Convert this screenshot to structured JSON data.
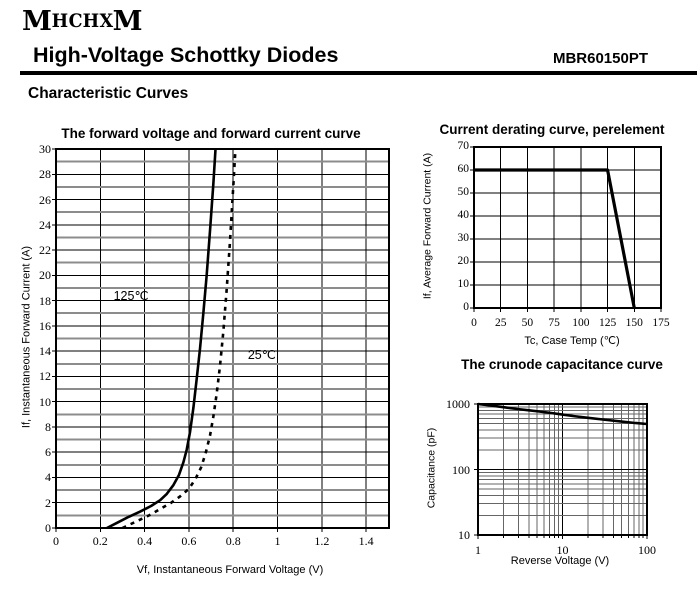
{
  "header": {
    "logo_letters": [
      "M",
      "H",
      "C",
      "H",
      "X",
      "M"
    ],
    "title": "High-Voltage Schottky Diodes",
    "part_number": "MBR60150PT",
    "section_title": "Characteristic Curves"
  },
  "chart_data": [
    {
      "type": "line",
      "title": "The forward voltage and forward current curve",
      "xlabel": "Vf, Instantaneous Forward Voltage (V)",
      "ylabel": "If, Instantaneous Forward Current (A)",
      "x_scale": "linear",
      "y_scale": "linear",
      "xlim": [
        0,
        1.503
      ],
      "ylim": [
        0,
        30
      ],
      "x_ticks": [
        0,
        0.2,
        0.4,
        0.6,
        0.8,
        1.0,
        1.2,
        1.4
      ],
      "x_tick_labels": [
        "0",
        "0.2",
        "0.4",
        "0.6",
        "0.8",
        "1",
        "1.2",
        "1.4"
      ],
      "y_ticks": [
        0,
        2,
        4,
        6,
        8,
        10,
        12,
        14,
        16,
        18,
        20,
        22,
        24,
        26,
        28,
        30
      ],
      "y_tick_labels": [
        "0",
        "2",
        "4",
        "6",
        "8",
        "10",
        "12",
        "14",
        "16",
        "18",
        "20",
        "22",
        "24",
        "26",
        "28",
        "30"
      ],
      "grid_x_step": 0.2,
      "grid_y_step": 1,
      "annotations": [
        {
          "text": "125℃",
          "x": 0.26,
          "y": 19.0
        },
        {
          "text": "25℃",
          "x": 0.866,
          "y": 14.35
        }
      ],
      "series": [
        {
          "name": "125℃",
          "style": "solid",
          "points": [
            [
              0.23,
              0
            ],
            [
              0.28,
              0.45
            ],
            [
              0.33,
              0.9
            ],
            [
              0.38,
              1.3
            ],
            [
              0.43,
              1.75
            ],
            [
              0.47,
              2.2
            ],
            [
              0.5,
              2.7
            ],
            [
              0.53,
              3.4
            ],
            [
              0.555,
              4.2
            ],
            [
              0.575,
              5.2
            ],
            [
              0.59,
              6.2
            ],
            [
              0.605,
              7.6
            ],
            [
              0.62,
              9.5
            ],
            [
              0.635,
              11.8
            ],
            [
              0.65,
              14.2
            ],
            [
              0.665,
              17.0
            ],
            [
              0.68,
              20.0
            ],
            [
              0.695,
              23.5
            ],
            [
              0.71,
              27.2
            ],
            [
              0.72,
              30
            ]
          ]
        },
        {
          "name": "25℃",
          "style": "dashed",
          "points": [
            [
              0.3,
              0
            ],
            [
              0.36,
              0.5
            ],
            [
              0.42,
              1.0
            ],
            [
              0.47,
              1.5
            ],
            [
              0.52,
              2.0
            ],
            [
              0.56,
              2.5
            ],
            [
              0.6,
              3.1
            ],
            [
              0.63,
              3.9
            ],
            [
              0.655,
              4.8
            ],
            [
              0.675,
              5.9
            ],
            [
              0.695,
              7.3
            ],
            [
              0.71,
              8.8
            ],
            [
              0.725,
              10.6
            ],
            [
              0.74,
              12.8
            ],
            [
              0.755,
              15.5
            ],
            [
              0.77,
              18.8
            ],
            [
              0.785,
              22.6
            ],
            [
              0.8,
              27.0
            ],
            [
              0.81,
              30
            ]
          ]
        }
      ]
    },
    {
      "type": "line",
      "title": "Current derating curve, perelement",
      "xlabel": "Tc, Case Temp (℃)",
      "ylabel": "If, Average Forward Current (A)",
      "x_scale": "linear",
      "y_scale": "linear",
      "xlim": [
        0,
        175
      ],
      "ylim": [
        0,
        70
      ],
      "x_ticks": [
        0,
        25,
        50,
        75,
        100,
        125,
        150,
        175
      ],
      "x_tick_labels": [
        "0",
        "25",
        "50",
        "75",
        "100",
        "125",
        "150",
        "175"
      ],
      "y_ticks": [
        0,
        10,
        20,
        30,
        40,
        50,
        60,
        70
      ],
      "y_tick_labels": [
        "0",
        "10",
        "20",
        "30",
        "40",
        "50",
        "60",
        "70"
      ],
      "grid_x_step": 25,
      "grid_y_step": 10,
      "annotations": [],
      "series": [
        {
          "name": "derating",
          "style": "solid",
          "points": [
            [
              0,
              60
            ],
            [
              125,
              60
            ],
            [
              150,
              0
            ]
          ]
        }
      ]
    },
    {
      "type": "line",
      "title": "The crunode capacitance curve",
      "xlabel": "Reverse Voltage (V)",
      "ylabel": "Capacitance (pF)",
      "x_scale": "log",
      "y_scale": "log",
      "xlim": [
        1,
        100
      ],
      "ylim": [
        10,
        1000
      ],
      "x_ticks": [
        1,
        10,
        100
      ],
      "x_tick_labels": [
        "1",
        "10",
        "100"
      ],
      "y_ticks": [
        10,
        100,
        1000
      ],
      "y_tick_labels": [
        "10",
        "100",
        "1000"
      ],
      "annotations": [],
      "series": [
        {
          "name": "capacitance",
          "style": "solid",
          "points": [
            [
              1,
              1000
            ],
            [
              1.4,
              950
            ],
            [
              2,
              895
            ],
            [
              3,
              835
            ],
            [
              4,
              800
            ],
            [
              5,
              775
            ],
            [
              7,
              735
            ],
            [
              10,
              690
            ],
            [
              14,
              650
            ],
            [
              20,
              615
            ],
            [
              30,
              580
            ],
            [
              50,
              540
            ],
            [
              70,
              515
            ],
            [
              100,
              495
            ]
          ]
        }
      ]
    }
  ]
}
